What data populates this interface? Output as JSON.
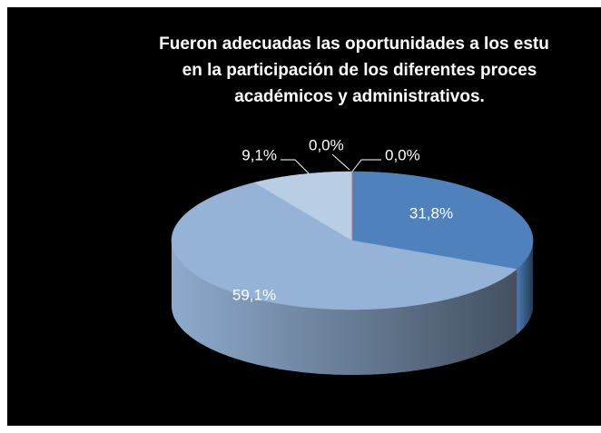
{
  "chart_data": {
    "type": "pie3d",
    "title": [
      "Fueron adecuadas las oportunidades a los estu",
      "en la participación de los diferentes proces",
      "académicos y administrativos."
    ],
    "values": [
      31.8,
      59.1,
      9.1,
      0.0,
      0.0
    ],
    "value_labels": [
      "31,8%",
      "59,1%",
      "9,1%",
      "0,0%",
      "0,0%"
    ],
    "colors": [
      "#4f81bd",
      "#95b3d7",
      "#b9cde5",
      "#dbe5f1",
      "#c0504d"
    ]
  }
}
